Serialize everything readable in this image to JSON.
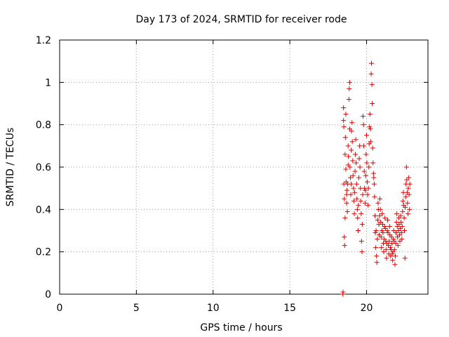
{
  "chart_data": {
    "type": "scatter",
    "title": "Day 173 of 2024, SRMTID for receiver rode",
    "xlabel": "GPS time / hours",
    "ylabel": "SRMTID / TECUs",
    "xlim": [
      0,
      24
    ],
    "ylim": [
      0,
      1.2
    ],
    "xticks": [
      0,
      5,
      10,
      15,
      20
    ],
    "xtick_labels": [
      "0",
      "5",
      "10",
      "15",
      "20"
    ],
    "yticks": [
      0,
      0.2,
      0.4,
      0.6,
      0.8,
      1.0,
      1.2
    ],
    "ytick_labels": [
      "0",
      "0.2",
      "0.4",
      "0.6",
      "0.8",
      "1",
      "1.2"
    ],
    "grid": true,
    "marker": "+",
    "color": "#e00000",
    "series": [
      {
        "name": "SRMTID",
        "points": [
          [
            18.45,
            0.0
          ],
          [
            18.47,
            0.01
          ],
          [
            18.5,
            0.88
          ],
          [
            18.5,
            0.82
          ],
          [
            18.52,
            0.79
          ],
          [
            18.52,
            0.52
          ],
          [
            18.55,
            0.45
          ],
          [
            18.55,
            0.27
          ],
          [
            18.57,
            0.23
          ],
          [
            18.6,
            0.36
          ],
          [
            18.6,
            0.66
          ],
          [
            18.62,
            0.74
          ],
          [
            18.65,
            0.85
          ],
          [
            18.65,
            0.59
          ],
          [
            18.67,
            0.53
          ],
          [
            18.7,
            0.47
          ],
          [
            18.7,
            0.43
          ],
          [
            18.72,
            0.49
          ],
          [
            18.75,
            0.39
          ],
          [
            18.77,
            0.52
          ],
          [
            18.8,
            0.61
          ],
          [
            18.8,
            0.7
          ],
          [
            18.82,
            0.65
          ],
          [
            18.85,
            0.92
          ],
          [
            18.87,
            0.97
          ],
          [
            18.9,
            1.0
          ],
          [
            18.9,
            0.78
          ],
          [
            18.92,
            0.6
          ],
          [
            18.95,
            0.55
          ],
          [
            18.97,
            0.47
          ],
          [
            19.0,
            0.52
          ],
          [
            19.0,
            0.68
          ],
          [
            19.02,
            0.77
          ],
          [
            19.05,
            0.81
          ],
          [
            19.07,
            0.72
          ],
          [
            19.1,
            0.63
          ],
          [
            19.12,
            0.56
          ],
          [
            19.15,
            0.5
          ],
          [
            19.17,
            0.44
          ],
          [
            19.2,
            0.38
          ],
          [
            19.22,
            0.48
          ],
          [
            19.25,
            0.58
          ],
          [
            19.27,
            0.66
          ],
          [
            19.3,
            0.73
          ],
          [
            19.32,
            0.62
          ],
          [
            19.35,
            0.52
          ],
          [
            19.37,
            0.45
          ],
          [
            19.4,
            0.4
          ],
          [
            19.42,
            0.36
          ],
          [
            19.45,
            0.3
          ],
          [
            19.47,
            0.42
          ],
          [
            19.5,
            0.55
          ],
          [
            19.52,
            0.64
          ],
          [
            19.55,
            0.7
          ],
          [
            19.57,
            0.6
          ],
          [
            19.6,
            0.5
          ],
          [
            19.62,
            0.44
          ],
          [
            19.65,
            0.38
          ],
          [
            19.67,
            0.25
          ],
          [
            19.7,
            0.2
          ],
          [
            19.72,
            0.33
          ],
          [
            19.75,
            0.47
          ],
          [
            19.77,
            0.84
          ],
          [
            19.8,
            0.8
          ],
          [
            19.82,
            0.7
          ],
          [
            19.85,
            0.58
          ],
          [
            19.87,
            0.5
          ],
          [
            19.9,
            0.43
          ],
          [
            19.92,
            0.49
          ],
          [
            19.95,
            0.56
          ],
          [
            19.97,
            0.66
          ],
          [
            20.0,
            0.75
          ],
          [
            20.02,
            0.62
          ],
          [
            20.05,
            0.53
          ],
          [
            20.07,
            0.47
          ],
          [
            20.1,
            0.42
          ],
          [
            20.12,
            0.5
          ],
          [
            20.15,
            0.6
          ],
          [
            20.17,
            0.71
          ],
          [
            20.2,
            0.79
          ],
          [
            20.22,
            0.85
          ],
          [
            20.25,
            0.78
          ],
          [
            20.27,
            0.72
          ],
          [
            20.3,
            1.04
          ],
          [
            20.32,
            1.09
          ],
          [
            20.35,
            0.99
          ],
          [
            20.37,
            0.9
          ],
          [
            20.4,
            0.69
          ],
          [
            20.42,
            0.62
          ],
          [
            20.45,
            0.57
          ],
          [
            20.47,
            0.55
          ],
          [
            20.5,
            0.52
          ],
          [
            20.52,
            0.46
          ],
          [
            20.55,
            0.37
          ],
          [
            20.57,
            0.29
          ],
          [
            20.6,
            0.22
          ],
          [
            20.62,
            0.3
          ],
          [
            20.65,
            0.18
          ],
          [
            20.67,
            0.15
          ],
          [
            20.7,
            0.26
          ],
          [
            20.72,
            0.35
          ],
          [
            20.75,
            0.43
          ],
          [
            20.77,
            0.4
          ],
          [
            20.8,
            0.33
          ],
          [
            20.82,
            0.28
          ],
          [
            20.85,
            0.37
          ],
          [
            20.87,
            0.45
          ],
          [
            20.9,
            0.4
          ],
          [
            20.92,
            0.34
          ],
          [
            20.95,
            0.27
          ],
          [
            20.97,
            0.22
          ],
          [
            21.0,
            0.3
          ],
          [
            21.02,
            0.38
          ],
          [
            21.05,
            0.33
          ],
          [
            21.07,
            0.29
          ],
          [
            21.1,
            0.24
          ],
          [
            21.12,
            0.2
          ],
          [
            21.15,
            0.26
          ],
          [
            21.17,
            0.32
          ],
          [
            21.2,
            0.36
          ],
          [
            21.22,
            0.31
          ],
          [
            21.25,
            0.25
          ],
          [
            21.27,
            0.21
          ],
          [
            21.3,
            0.17
          ],
          [
            21.32,
            0.24
          ],
          [
            21.35,
            0.3
          ],
          [
            21.37,
            0.35
          ],
          [
            21.4,
            0.29
          ],
          [
            21.42,
            0.23
          ],
          [
            21.45,
            0.19
          ],
          [
            21.47,
            0.25
          ],
          [
            21.5,
            0.32
          ],
          [
            21.52,
            0.28
          ],
          [
            21.55,
            0.22
          ],
          [
            21.57,
            0.18
          ],
          [
            21.6,
            0.21
          ],
          [
            21.62,
            0.27
          ],
          [
            21.65,
            0.24
          ],
          [
            21.67,
            0.19
          ],
          [
            21.7,
            0.16
          ],
          [
            21.72,
            0.2
          ],
          [
            21.75,
            0.26
          ],
          [
            21.77,
            0.3
          ],
          [
            21.8,
            0.25
          ],
          [
            21.82,
            0.21
          ],
          [
            21.85,
            0.14
          ],
          [
            21.87,
            0.18
          ],
          [
            21.9,
            0.24
          ],
          [
            21.92,
            0.29
          ],
          [
            21.95,
            0.34
          ],
          [
            21.97,
            0.38
          ],
          [
            22.0,
            0.32
          ],
          [
            22.02,
            0.27
          ],
          [
            22.05,
            0.23
          ],
          [
            22.07,
            0.3
          ],
          [
            22.1,
            0.36
          ],
          [
            22.12,
            0.33
          ],
          [
            22.15,
            0.28
          ],
          [
            22.17,
            0.25
          ],
          [
            22.2,
            0.31
          ],
          [
            22.22,
            0.37
          ],
          [
            22.25,
            0.34
          ],
          [
            22.27,
            0.29
          ],
          [
            22.3,
            0.26
          ],
          [
            22.32,
            0.32
          ],
          [
            22.35,
            0.39
          ],
          [
            22.37,
            0.44
          ],
          [
            22.4,
            0.48
          ],
          [
            22.42,
            0.42
          ],
          [
            22.45,
            0.36
          ],
          [
            22.47,
            0.3
          ],
          [
            22.5,
            0.17
          ],
          [
            22.52,
            0.41
          ],
          [
            22.55,
            0.46
          ],
          [
            22.57,
            0.52
          ],
          [
            22.6,
            0.6
          ],
          [
            22.62,
            0.54
          ],
          [
            22.65,
            0.48
          ],
          [
            22.67,
            0.43
          ],
          [
            22.7,
            0.38
          ],
          [
            22.72,
            0.5
          ],
          [
            22.75,
            0.55
          ],
          [
            22.77,
            0.47
          ],
          [
            22.8,
            0.4
          ],
          [
            22.82,
            0.52
          ]
        ]
      }
    ]
  }
}
